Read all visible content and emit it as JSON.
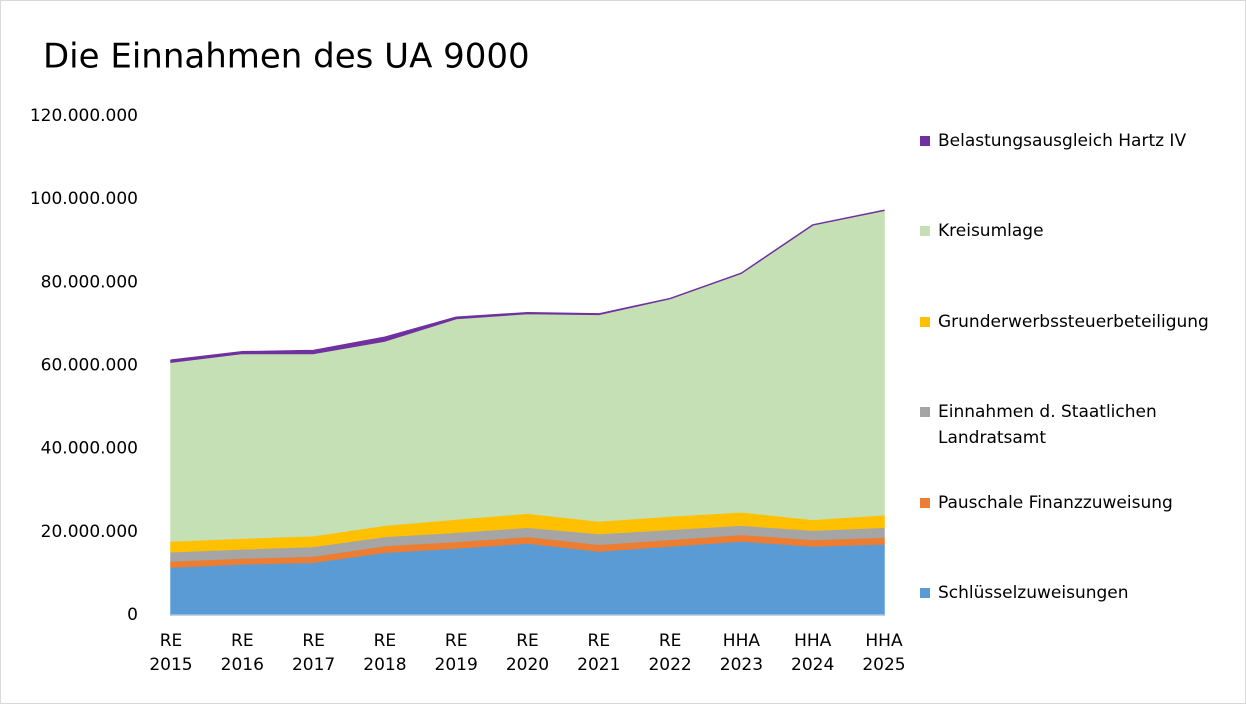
{
  "chart_data": {
    "type": "stacked_area",
    "title": "Die Einnahmen des UA 9000",
    "categories": [
      "RE 2015",
      "RE 2016",
      "RE 2017",
      "RE 2018",
      "RE 2019",
      "RE 2020",
      "RE 2021",
      "RE 2022",
      "HHA 2023",
      "HHA 2024",
      "HHA 2025"
    ],
    "series": [
      {
        "name": "Schlüsselzuweisungen",
        "color": "#5b9bd5",
        "values": [
          11500000,
          12300000,
          12700000,
          15100000,
          16100000,
          17300000,
          15400000,
          16600000,
          17800000,
          16600000,
          17100000
        ]
      },
      {
        "name": "Pauschale Finanzzuweisung",
        "color": "#ed7d31",
        "values": [
          1500000,
          1400000,
          1500000,
          1600000,
          1600000,
          1600000,
          1600000,
          1600000,
          1600000,
          1600000,
          1600000
        ]
      },
      {
        "name": "Einnahmen d. Staatlichen Landratsamt",
        "color": "#a5a5a5",
        "values": [
          2200000,
          2200000,
          2300000,
          2200000,
          2200000,
          2200000,
          2600000,
          2400000,
          2200000,
          2200000,
          2400000
        ]
      },
      {
        "name": "Grunderwerbssteuerbeteiligung",
        "color": "#ffc000",
        "values": [
          2600000,
          2600000,
          2600000,
          2700000,
          3200000,
          3400000,
          3000000,
          3200000,
          3200000,
          2600000,
          3000000
        ]
      },
      {
        "name": "Kreisumlage",
        "color": "#c5e0b4",
        "values": [
          43000000,
          44400000,
          43800000,
          44300000,
          48200000,
          48000000,
          49700000,
          52300000,
          57400000,
          70800000,
          73200000
        ]
      },
      {
        "name": "Belastungsausgleich Hartz IV",
        "color": "#7030a0",
        "values": [
          500000,
          400000,
          700000,
          900000,
          300000,
          200000,
          100000,
          0,
          0,
          0,
          0
        ]
      }
    ],
    "ylim": [
      0,
      120000000
    ],
    "yticks": [
      0,
      {
        "value": 20000000,
        "label": "20.000.000"
      },
      {
        "value": 40000000,
        "label": "40.000.000"
      },
      {
        "value": 60000000,
        "label": "60.000.000"
      },
      {
        "value": 80000000,
        "label": "80.000.000"
      },
      {
        "value": 100000000,
        "label": "100.000.000"
      },
      {
        "value": 120000000,
        "label": "120.000.000"
      }
    ],
    "grid": false,
    "legend": "right"
  }
}
